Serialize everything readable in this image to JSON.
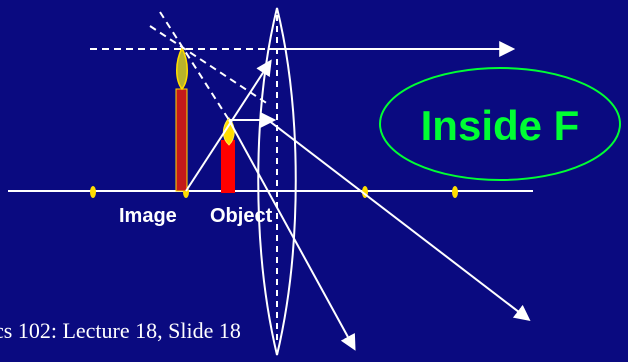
{
  "labels": {
    "image": "Image",
    "object": "Object"
  },
  "badge": {
    "text": "Inside F"
  },
  "footer": {
    "text": "cs 102: Lecture 18, Slide 18"
  },
  "colors": {
    "background": "#0a0a80",
    "rays": "#ffffff",
    "badge": "#00ff33",
    "object_candle": "#ff0000",
    "image_candle": "#c41a1a",
    "flame": "#ffdd00",
    "focal_points": "#ffdd00"
  }
}
